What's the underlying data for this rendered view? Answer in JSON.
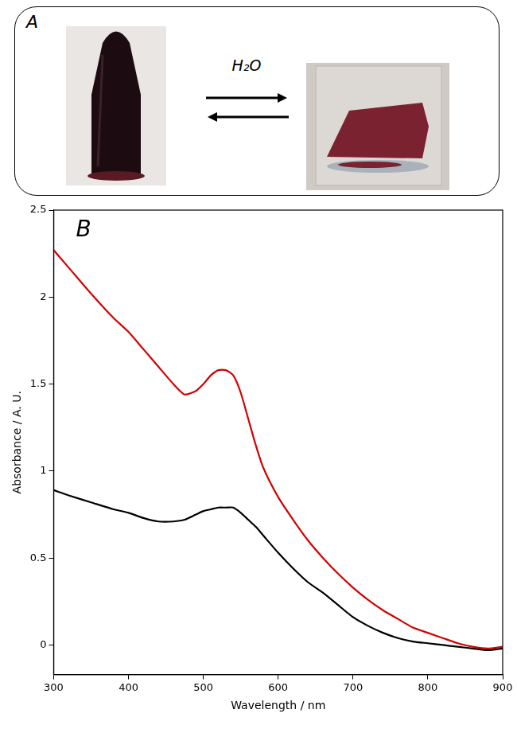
{
  "panel_a": {
    "label": "A",
    "arrow_label": "H₂O"
  },
  "panel_b": {
    "label": "B"
  },
  "chart_data": {
    "type": "line",
    "x": [
      300,
      320,
      350,
      380,
      400,
      420,
      440,
      460,
      475,
      490,
      500,
      510,
      520,
      530,
      540,
      550,
      560,
      570,
      580,
      600,
      620,
      640,
      660,
      680,
      700,
      720,
      740,
      760,
      780,
      800,
      820,
      840,
      860,
      880,
      900
    ],
    "series": [
      {
        "color": "#d40000",
        "values": [
          2.27,
          2.17,
          2.02,
          1.88,
          1.8,
          1.7,
          1.6,
          1.5,
          1.44,
          1.46,
          1.5,
          1.55,
          1.58,
          1.58,
          1.55,
          1.45,
          1.3,
          1.15,
          1.02,
          0.85,
          0.72,
          0.6,
          0.5,
          0.41,
          0.33,
          0.26,
          0.2,
          0.15,
          0.1,
          0.07,
          0.04,
          0.01,
          -0.01,
          -0.02,
          -0.01
        ]
      },
      {
        "color": "#000000",
        "values": [
          0.89,
          0.86,
          0.82,
          0.78,
          0.76,
          0.73,
          0.71,
          0.71,
          0.72,
          0.75,
          0.77,
          0.78,
          0.79,
          0.79,
          0.79,
          0.76,
          0.72,
          0.68,
          0.63,
          0.53,
          0.44,
          0.36,
          0.3,
          0.23,
          0.16,
          0.11,
          0.07,
          0.04,
          0.02,
          0.01,
          0.0,
          -0.01,
          -0.02,
          -0.03,
          -0.02
        ]
      }
    ],
    "x_label": "Wavelength / nm",
    "y_label": "Absorbance / A. U.",
    "xlim": [
      300,
      900
    ],
    "ylim": [
      -0.17,
      2.5
    ],
    "xticks": [
      300,
      400,
      500,
      600,
      700,
      800,
      900
    ],
    "yticks": [
      0,
      0.5,
      1,
      1.5,
      2,
      2.5
    ],
    "grid": false
  }
}
